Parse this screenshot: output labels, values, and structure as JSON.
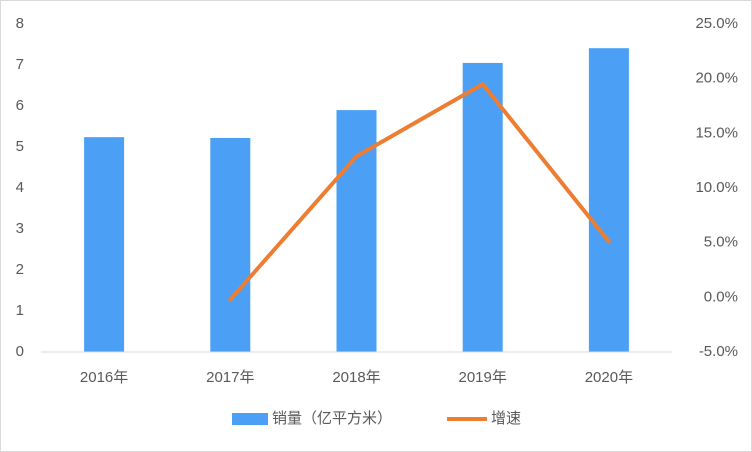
{
  "chart_data": {
    "type": "bar_line",
    "categories": [
      "2016年",
      "2017年",
      "2018年",
      "2019年",
      "2020年"
    ],
    "series": [
      {
        "name": "销量（亿平方米）",
        "type": "bar",
        "color": "#4ba0f5",
        "values": [
          5.24,
          5.22,
          5.9,
          7.05,
          7.41
        ]
      },
      {
        "name": "增速",
        "type": "line",
        "axis": "y2",
        "color": "#ed7d31",
        "values": [
          null,
          -0.2,
          12.9,
          19.5,
          5.1
        ]
      }
    ],
    "ylim": [
      0,
      8
    ],
    "yticks": [
      0,
      1,
      2,
      3,
      4,
      5,
      6,
      7,
      8
    ],
    "y2lim": [
      -5,
      25
    ],
    "y2ticks": [
      {
        "value": -5,
        "label": "-5.0%"
      },
      {
        "value": 0,
        "label": "0.0%"
      },
      {
        "value": 5,
        "label": "5.0%"
      },
      {
        "value": 10,
        "label": "10.0%"
      },
      {
        "value": 15,
        "label": "15.0%"
      },
      {
        "value": 20,
        "label": "20.0%"
      },
      {
        "value": 25,
        "label": "25.0%"
      }
    ],
    "grid": false,
    "legend": "bottom"
  }
}
